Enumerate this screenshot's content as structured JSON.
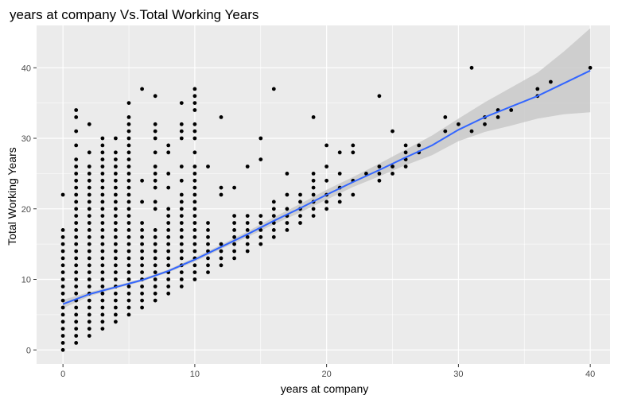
{
  "chart_data": {
    "type": "scatter",
    "title": "years at company Vs.Total Working Years",
    "xlabel": "years at company",
    "ylabel": "Total Working Years",
    "xlim": [
      -2,
      41.5
    ],
    "ylim": [
      -2,
      46
    ],
    "xticks": [
      0,
      10,
      20,
      30,
      40
    ],
    "yticks": [
      0,
      10,
      20,
      30,
      40
    ],
    "grid": true,
    "legend": "none",
    "colors": {
      "panel": "#ebebeb",
      "grid_major": "#ffffff",
      "points": "#000000",
      "smooth_line": "#3366ff",
      "confidence_band": "#c9c9c9"
    },
    "points_by_x": [
      {
        "x": 0,
        "y": [
          0,
          1,
          2,
          3,
          4,
          5,
          6,
          7,
          8,
          9,
          10,
          11,
          12,
          13,
          14,
          15,
          16,
          17,
          22
        ]
      },
      {
        "x": 1,
        "y": [
          1,
          2,
          3,
          4,
          5,
          6,
          7,
          8,
          9,
          10,
          11,
          12,
          13,
          14,
          15,
          16,
          17,
          18,
          19,
          20,
          21,
          22,
          23,
          24,
          25,
          26,
          27,
          29,
          31,
          33,
          34
        ]
      },
      {
        "x": 2,
        "y": [
          2,
          3,
          4,
          5,
          6,
          7,
          8,
          9,
          10,
          11,
          12,
          13,
          14,
          15,
          16,
          17,
          18,
          19,
          20,
          21,
          22,
          23,
          24,
          25,
          26,
          28,
          32
        ]
      },
      {
        "x": 3,
        "y": [
          3,
          4,
          5,
          6,
          7,
          8,
          9,
          10,
          11,
          12,
          13,
          14,
          15,
          16,
          17,
          18,
          19,
          20,
          21,
          22,
          23,
          24,
          25,
          26,
          27,
          28,
          29,
          30
        ]
      },
      {
        "x": 4,
        "y": [
          4,
          5,
          6,
          7,
          8,
          9,
          10,
          11,
          12,
          13,
          14,
          15,
          16,
          17,
          18,
          19,
          20,
          21,
          22,
          23,
          24,
          25,
          26,
          27,
          28,
          30
        ]
      },
      {
        "x": 5,
        "y": [
          5,
          6,
          7,
          8,
          9,
          10,
          11,
          12,
          13,
          14,
          15,
          16,
          17,
          18,
          19,
          20,
          21,
          22,
          23,
          24,
          25,
          26,
          27,
          28,
          29,
          30,
          31,
          32,
          33,
          35
        ]
      },
      {
        "x": 6,
        "y": [
          6,
          7,
          8,
          9,
          10,
          11,
          12,
          13,
          14,
          15,
          16,
          17,
          18,
          21,
          24,
          37
        ]
      },
      {
        "x": 7,
        "y": [
          7,
          8,
          9,
          10,
          11,
          12,
          13,
          14,
          15,
          16,
          17,
          20,
          21,
          23,
          24,
          25,
          26,
          28,
          30,
          31,
          32,
          36
        ]
      },
      {
        "x": 8,
        "y": [
          8,
          9,
          10,
          11,
          12,
          13,
          14,
          15,
          16,
          17,
          18,
          19,
          20,
          23,
          25,
          28,
          29
        ]
      },
      {
        "x": 9,
        "y": [
          9,
          10,
          11,
          12,
          13,
          14,
          15,
          16,
          17,
          18,
          19,
          20,
          21,
          22,
          24,
          26,
          30,
          31,
          32,
          35
        ]
      },
      {
        "x": 10,
        "y": [
          10,
          11,
          12,
          13,
          14,
          15,
          16,
          17,
          18,
          19,
          20,
          21,
          22,
          23,
          24,
          25,
          26,
          28,
          30,
          31,
          32,
          34,
          35,
          36,
          37
        ]
      },
      {
        "x": 11,
        "y": [
          11,
          12,
          13,
          14,
          15,
          16,
          17,
          18,
          26
        ]
      },
      {
        "x": 12,
        "y": [
          12,
          13,
          14,
          15,
          22,
          23,
          33
        ]
      },
      {
        "x": 13,
        "y": [
          13,
          14,
          15,
          16,
          17,
          18,
          19,
          23
        ]
      },
      {
        "x": 14,
        "y": [
          14,
          15,
          16,
          17,
          18,
          19,
          26
        ]
      },
      {
        "x": 15,
        "y": [
          15,
          16,
          17,
          18,
          19,
          27,
          30
        ]
      },
      {
        "x": 16,
        "y": [
          16,
          17,
          18,
          19,
          20,
          21,
          37
        ]
      },
      {
        "x": 17,
        "y": [
          17,
          18,
          19,
          20,
          22,
          25
        ]
      },
      {
        "x": 18,
        "y": [
          18,
          19,
          20,
          21,
          22
        ]
      },
      {
        "x": 19,
        "y": [
          19,
          20,
          21,
          22,
          23,
          24,
          25,
          33
        ]
      },
      {
        "x": 20,
        "y": [
          20,
          21,
          22,
          24,
          26,
          29
        ]
      },
      {
        "x": 21,
        "y": [
          21,
          22,
          23,
          25,
          28
        ]
      },
      {
        "x": 22,
        "y": [
          22,
          24,
          28,
          29
        ]
      },
      {
        "x": 23,
        "y": [
          25
        ]
      },
      {
        "x": 24,
        "y": [
          24,
          25,
          26,
          36
        ]
      },
      {
        "x": 25,
        "y": [
          25,
          26,
          31
        ]
      },
      {
        "x": 26,
        "y": [
          26,
          27,
          28,
          29
        ]
      },
      {
        "x": 27,
        "y": [
          28,
          29
        ]
      },
      {
        "x": 29,
        "y": [
          31,
          33
        ]
      },
      {
        "x": 30,
        "y": [
          32
        ]
      },
      {
        "x": 31,
        "y": [
          31,
          40
        ]
      },
      {
        "x": 32,
        "y": [
          32,
          33
        ]
      },
      {
        "x": 33,
        "y": [
          33,
          34
        ]
      },
      {
        "x": 34,
        "y": [
          34
        ]
      },
      {
        "x": 36,
        "y": [
          36,
          37
        ]
      },
      {
        "x": 37,
        "y": [
          38
        ]
      },
      {
        "x": 40,
        "y": [
          40
        ]
      }
    ],
    "smooth": {
      "x": [
        0,
        2,
        4,
        6,
        8,
        10,
        12,
        14,
        16,
        18,
        20,
        22,
        24,
        26,
        28,
        30,
        32,
        34,
        36,
        38,
        40
      ],
      "y": [
        6.5,
        7.9,
        8.9,
        9.9,
        11.2,
        12.8,
        14.6,
        16.4,
        18.3,
        20.1,
        22.0,
        23.8,
        25.5,
        27.3,
        29.0,
        31.2,
        33.0,
        34.5,
        36.0,
        37.8,
        39.6
      ],
      "lower": [
        5.9,
        7.6,
        8.7,
        9.7,
        11.0,
        12.5,
        14.3,
        16.0,
        17.8,
        19.5,
        21.3,
        23.1,
        24.6,
        26.2,
        27.6,
        29.6,
        30.9,
        31.8,
        32.8,
        33.4,
        33.7
      ],
      "upper": [
        7.1,
        8.2,
        9.1,
        10.1,
        11.4,
        13.1,
        14.9,
        16.8,
        18.8,
        20.7,
        22.7,
        24.5,
        26.4,
        28.4,
        30.4,
        32.8,
        35.1,
        37.2,
        39.3,
        42.3,
        45.6
      ]
    }
  }
}
